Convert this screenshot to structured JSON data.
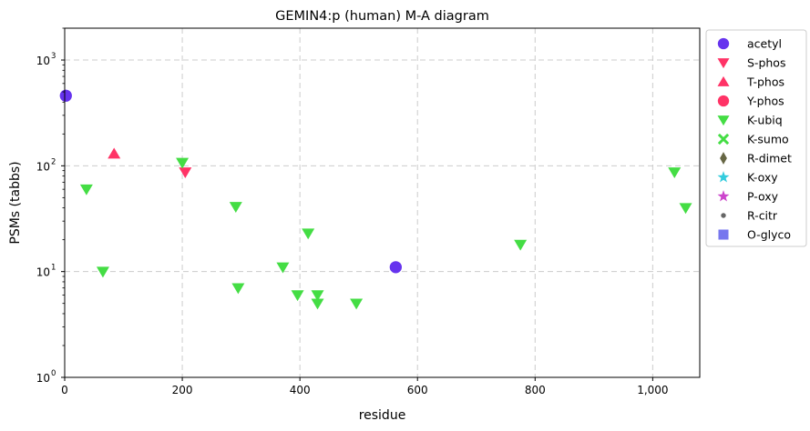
{
  "chart_data": {
    "type": "scatter",
    "title": "GEMIN4:p (human) M-A diagram",
    "xlabel": "residue",
    "ylabel": "PSMs (tabbs)",
    "xlim": [
      0,
      1080
    ],
    "ylim": [
      1,
      2000
    ],
    "yscale": "log",
    "grid": true,
    "legend_position": "outside right, top",
    "x_ticks": [
      {
        "value": 0,
        "label": "0"
      },
      {
        "value": 200,
        "label": "200"
      },
      {
        "value": 400,
        "label": "400"
      },
      {
        "value": 600,
        "label": "600"
      },
      {
        "value": 800,
        "label": "800"
      },
      {
        "value": 1000,
        "label": "1,000"
      }
    ],
    "y_ticks": [
      {
        "value": 1,
        "label": "10",
        "exp": "0"
      },
      {
        "value": 10,
        "label": "10",
        "exp": "1"
      },
      {
        "value": 100,
        "label": "10",
        "exp": "2"
      },
      {
        "value": 1000,
        "label": "10",
        "exp": "3"
      }
    ],
    "series": [
      {
        "name": "acetyl",
        "marker": "circle",
        "color": "#6633ee",
        "points": [
          {
            "x": 2,
            "y": 460
          },
          {
            "x": 563,
            "y": 11
          }
        ]
      },
      {
        "name": "S-phos",
        "marker": "triangle-down",
        "color": "#ff3366",
        "points": [
          {
            "x": 205,
            "y": 87
          }
        ]
      },
      {
        "name": "T-phos",
        "marker": "triangle-up",
        "color": "#ff3366",
        "points": [
          {
            "x": 84,
            "y": 130
          }
        ]
      },
      {
        "name": "Y-phos",
        "marker": "circle",
        "color": "#ff3366",
        "points": []
      },
      {
        "name": "K-ubiq",
        "marker": "triangle-down",
        "color": "#44dd44",
        "points": [
          {
            "x": 37,
            "y": 60
          },
          {
            "x": 65,
            "y": 10
          },
          {
            "x": 200,
            "y": 107
          },
          {
            "x": 291,
            "y": 41
          },
          {
            "x": 295,
            "y": 7
          },
          {
            "x": 371,
            "y": 11
          },
          {
            "x": 396,
            "y": 6
          },
          {
            "x": 414,
            "y": 23
          },
          {
            "x": 430,
            "y": 6
          },
          {
            "x": 430,
            "y": 5
          },
          {
            "x": 496,
            "y": 5
          },
          {
            "x": 775,
            "y": 18
          },
          {
            "x": 1037,
            "y": 87
          },
          {
            "x": 1056,
            "y": 40
          }
        ]
      },
      {
        "name": "K-sumo",
        "marker": "x-filled",
        "color": "#44dd44",
        "points": []
      },
      {
        "name": "R-dimet",
        "marker": "diamond",
        "color": "#666644",
        "points": []
      },
      {
        "name": "K-oxy",
        "marker": "star",
        "color": "#33ccdd",
        "points": []
      },
      {
        "name": "P-oxy",
        "marker": "star",
        "color": "#cc44cc",
        "points": []
      },
      {
        "name": "R-citr",
        "marker": "dot",
        "color": "#666666",
        "points": []
      },
      {
        "name": "O-glyco",
        "marker": "square",
        "color": "#7777ee",
        "points": []
      }
    ]
  }
}
